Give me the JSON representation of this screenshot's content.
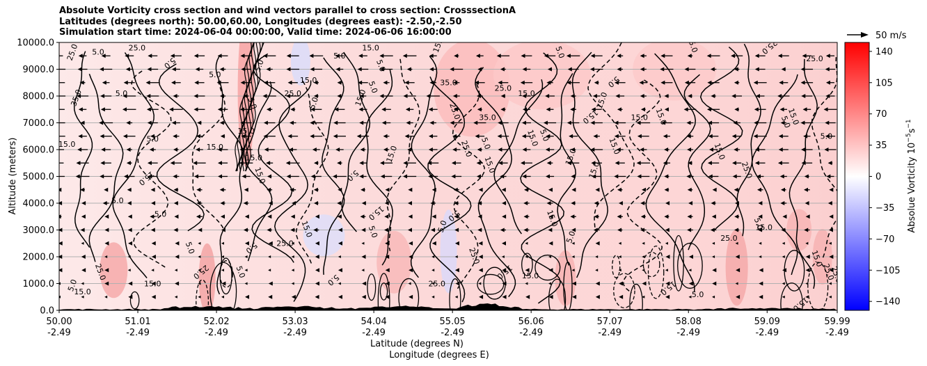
{
  "title_lines": [
    "Absolute Vorticity cross section and wind vectors parallel to cross section: CrosssectionA",
    "Latitudes (degrees north): 50.00,60.00, Longitudes (degrees east): -2.50,-2.50",
    "Simulation start time: 2024-06-04 00:00:00, Valid time: 2024-06-06 16:00:00"
  ],
  "chart_data": {
    "type": "heatmap",
    "xlabel_lat": "Latitude (degrees N)",
    "xlabel_lon": "Longitude (degrees E)",
    "ylabel": "Altitude (meters)",
    "ylim": [
      0,
      10000
    ],
    "xlim": [
      50.0,
      59.99
    ],
    "y_ticks": [
      "0.0",
      "1000.0",
      "2000.0",
      "3000.0",
      "4000.0",
      "5000.0",
      "6000.0",
      "7000.0",
      "8000.0",
      "9000.0",
      "10000.0"
    ],
    "x_ticks_lat": [
      "50.00",
      "51.01",
      "52.02",
      "53.03",
      "54.04",
      "55.05",
      "56.06",
      "57.07",
      "58.08",
      "59.09",
      "59.99"
    ],
    "x_ticks_lon": [
      "-2.49",
      "-2.49",
      "-2.49",
      "-2.49",
      "-2.49",
      "-2.49",
      "-2.49",
      "-2.49",
      "-2.49",
      "-2.49",
      "-2.49"
    ],
    "grid": "horizontal",
    "colorbar": {
      "label": "Absolue Vorticity 10",
      "label_exp": "−5",
      "label_unit": "s",
      "label_unit_exp": "−1",
      "range": [
        -150,
        150
      ],
      "ticks": [
        "140",
        "105",
        "70",
        "35",
        "0",
        "−35",
        "−70",
        "−105",
        "−140"
      ],
      "colormap": "bwr"
    },
    "quiver_key": {
      "label": "50 m/s",
      "speed": 50
    },
    "contour_labels": [
      {
        "text": "5.0",
        "lat": 50.5,
        "alt": 9550
      },
      {
        "text": "25.0",
        "lat": 50.2,
        "alt": 9600
      },
      {
        "text": "35.0",
        "lat": 50.25,
        "alt": 7900
      },
      {
        "text": "5.0",
        "lat": 50.8,
        "alt": 8000
      },
      {
        "text": "15.0",
        "lat": 50.1,
        "alt": 6100
      },
      {
        "text": "5.0",
        "lat": 50.75,
        "alt": 4000
      },
      {
        "text": "5.0",
        "lat": 51.3,
        "alt": 3500
      },
      {
        "text": "15.0",
        "lat": 50.3,
        "alt": 600
      },
      {
        "text": "5.0",
        "lat": 50.2,
        "alt": 900
      },
      {
        "text": "25.0",
        "lat": 51.0,
        "alt": 9700
      },
      {
        "text": "5.0",
        "lat": 51.4,
        "alt": 9300
      },
      {
        "text": "5.0",
        "lat": 51.2,
        "alt": 6300
      },
      {
        "text": "15.0",
        "lat": 51.1,
        "alt": 5000
      },
      {
        "text": "15.0",
        "lat": 52.0,
        "alt": 6000
      },
      {
        "text": "5.0",
        "lat": 51.65,
        "alt": 2300
      },
      {
        "text": "5.0",
        "lat": 52.45,
        "alt": 2400
      },
      {
        "text": "15.0",
        "lat": 52.5,
        "alt": 5600
      },
      {
        "text": "5.0",
        "lat": 52.0,
        "alt": 8700
      },
      {
        "text": "5.0",
        "lat": 52.6,
        "alt": 9100
      },
      {
        "text": "5.0",
        "lat": 52.45,
        "alt": 7700
      },
      {
        "text": "15.0",
        "lat": 52.4,
        "alt": 6600
      },
      {
        "text": "15.0",
        "lat": 52.55,
        "alt": 5000
      },
      {
        "text": "25.0",
        "lat": 53.0,
        "alt": 8000
      },
      {
        "text": "15.0",
        "lat": 53.2,
        "alt": 8500
      },
      {
        "text": "15.0",
        "lat": 53.15,
        "alt": 3000
      },
      {
        "text": "25.0",
        "lat": 52.9,
        "alt": 2400
      },
      {
        "text": "5.0",
        "lat": 53.3,
        "alt": 7700
      },
      {
        "text": "5.0",
        "lat": 53.6,
        "alt": 9400
      },
      {
        "text": "5.0",
        "lat": 53.75,
        "alt": 5100
      },
      {
        "text": "5.0",
        "lat": 54.0,
        "alt": 2900
      },
      {
        "text": "5.0",
        "lat": 54.0,
        "alt": 8300
      },
      {
        "text": "5.0",
        "lat": 54.1,
        "alt": 9100
      },
      {
        "text": "15.0",
        "lat": 54.0,
        "alt": 9700
      },
      {
        "text": "15.0",
        "lat": 53.9,
        "alt": 7900
      },
      {
        "text": "15.0",
        "lat": 54.3,
        "alt": 5800
      },
      {
        "text": "15.0",
        "lat": 54.05,
        "alt": 3700
      },
      {
        "text": "15.0",
        "lat": 54.9,
        "alt": 9900
      },
      {
        "text": "35.0",
        "lat": 55.0,
        "alt": 8400
      },
      {
        "text": "25.0",
        "lat": 55.05,
        "alt": 7400
      },
      {
        "text": "35.0",
        "lat": 55.5,
        "alt": 7100
      },
      {
        "text": "25.0",
        "lat": 55.2,
        "alt": 6000
      },
      {
        "text": "15.0",
        "lat": 55.5,
        "alt": 5400
      },
      {
        "text": "5.0",
        "lat": 55.45,
        "alt": 6200
      },
      {
        "text": "25.0",
        "lat": 55.7,
        "alt": 8200
      },
      {
        "text": "5.0",
        "lat": 55.05,
        "alt": 3600
      },
      {
        "text": "5.0",
        "lat": 54.95,
        "alt": 3100
      },
      {
        "text": "15.0",
        "lat": 56.0,
        "alt": 8000
      },
      {
        "text": "5.0",
        "lat": 56.2,
        "alt": 6500
      },
      {
        "text": "15.0",
        "lat": 56.05,
        "alt": 6400
      },
      {
        "text": "15.0",
        "lat": 56.6,
        "alt": 5700
      },
      {
        "text": "15.0",
        "lat": 56.8,
        "alt": 7300
      },
      {
        "text": "5.0",
        "lat": 56.4,
        "alt": 9600
      },
      {
        "text": "5.0",
        "lat": 57.1,
        "alt": 8600
      },
      {
        "text": "15.0",
        "lat": 57.0,
        "alt": 7800
      },
      {
        "text": "15.0",
        "lat": 57.1,
        "alt": 6100
      },
      {
        "text": "15.0",
        "lat": 57.45,
        "alt": 7100
      },
      {
        "text": "15.0",
        "lat": 56.9,
        "alt": 5200
      },
      {
        "text": "15.0",
        "lat": 56.3,
        "alt": 3400
      },
      {
        "text": "5.0",
        "lat": 56.6,
        "alt": 2700
      },
      {
        "text": "15.0",
        "lat": 55.7,
        "alt": 1500
      },
      {
        "text": "15.0",
        "lat": 56.05,
        "alt": 1200
      },
      {
        "text": "15.0",
        "lat": 58.1,
        "alt": 9900
      },
      {
        "text": "15.0",
        "lat": 57.7,
        "alt": 7200
      },
      {
        "text": "15.0",
        "lat": 58.45,
        "alt": 5900
      },
      {
        "text": "25.0",
        "lat": 58.8,
        "alt": 5200
      },
      {
        "text": "25.0",
        "lat": 58.6,
        "alt": 2600
      },
      {
        "text": "25.0",
        "lat": 59.1,
        "alt": 9900
      },
      {
        "text": "25.0",
        "lat": 59.7,
        "alt": 9300
      },
      {
        "text": "5.0",
        "lat": 59.3,
        "alt": 7000
      },
      {
        "text": "15.0",
        "lat": 59.4,
        "alt": 7200
      },
      {
        "text": "5.0",
        "lat": 59.85,
        "alt": 6400
      },
      {
        "text": "5.0",
        "lat": 58.95,
        "alt": 3200
      },
      {
        "text": "15.0",
        "lat": 59.05,
        "alt": 3000
      },
      {
        "text": "25.0",
        "lat": 59.85,
        "alt": 1400
      },
      {
        "text": "15.0",
        "lat": 59.7,
        "alt": 1900
      },
      {
        "text": "25.0",
        "lat": 59.95,
        "alt": 1300
      },
      {
        "text": "15.0",
        "lat": 59.5,
        "alt": 300
      },
      {
        "text": "15.0",
        "lat": 57.8,
        "alt": 900
      },
      {
        "text": "5.0",
        "lat": 58.2,
        "alt": 500
      },
      {
        "text": "25.0",
        "lat": 54.85,
        "alt": 900
      },
      {
        "text": "5.0",
        "lat": 53.5,
        "alt": 1200
      },
      {
        "text": "25.0",
        "lat": 55.3,
        "alt": 2000
      },
      {
        "text": "5.0",
        "lat": 52.3,
        "alt": 1400
      },
      {
        "text": "25.0",
        "lat": 51.8,
        "alt": 1500
      },
      {
        "text": "15.0",
        "lat": 51.2,
        "alt": 900
      },
      {
        "text": "25.0",
        "lat": 50.5,
        "alt": 1400
      }
    ]
  }
}
